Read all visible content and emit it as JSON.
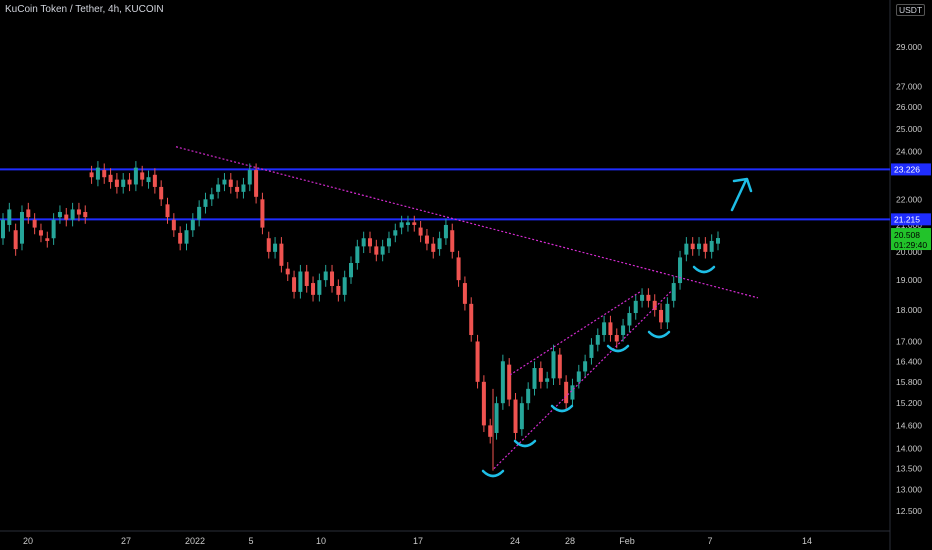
{
  "header": {
    "title": "KuCoin Token / Tether, 4h, KUCOIN",
    "currency": "USDT"
  },
  "colors": {
    "up": "#26a69a",
    "down": "#ef5350",
    "level": "#1f2dff",
    "trendline": "#d42bd0",
    "annotation": "#1ebee6",
    "current": "#22c32a"
  },
  "chart_data": {
    "type": "candlestick",
    "timeframe": "4h",
    "y_axis": {
      "scale": "log",
      "tick_labels": [
        "29.000",
        "27.000",
        "26.000",
        "25.000",
        "24.000",
        "22.000",
        "21.000",
        "20.000",
        "19.000",
        "18.000",
        "17.000",
        "16.400",
        "15.800",
        "15.200",
        "14.600",
        "14.000",
        "13.500",
        "13.000",
        "12.500"
      ]
    },
    "x_axis": {
      "tick_labels": [
        "20",
        "27",
        "2022",
        "5",
        "10",
        "17",
        "24",
        "28",
        "Feb",
        "7",
        "14"
      ]
    },
    "horizontal_levels": [
      {
        "price": 23.226,
        "label": "23.226"
      },
      {
        "price": 21.215,
        "label": "21.215"
      }
    ],
    "current_price": {
      "price": 20.508,
      "label": "20.508",
      "countdown": "01:29:40"
    },
    "trendlines": [
      {
        "style": "dotted",
        "from": {
          "date": "Dec 26",
          "price": 24.2
        },
        "to": {
          "date": "Feb 12",
          "price": 18.4
        }
      },
      {
        "style": "dotted",
        "from": {
          "date": "Jan 22",
          "price": 13.5
        },
        "to": {
          "date": "Feb 3",
          "price": 18.65
        }
      },
      {
        "style": "dotted",
        "from": {
          "date": "Jan 22",
          "price": 16.0
        },
        "to": {
          "date": "Feb 1",
          "price": 18.6
        }
      }
    ],
    "candles_path": [
      [
        20.5,
        21.2
      ],
      [
        21.0,
        21.6
      ],
      [
        20.8,
        20.1
      ],
      [
        20.3,
        21.5
      ],
      [
        21.6,
        21.3
      ],
      [
        21.2,
        20.9
      ],
      [
        20.8,
        20.6
      ],
      [
        20.5,
        20.4
      ],
      [
        20.5,
        21.2
      ],
      [
        21.3,
        21.5
      ],
      [
        21.4,
        21.2
      ],
      [
        21.2,
        21.6
      ],
      [
        21.6,
        21.4
      ],
      [
        21.5,
        21.3
      ],
      [
        23.1,
        22.9
      ],
      [
        22.8,
        23.3
      ],
      [
        23.2,
        22.9
      ],
      [
        23.0,
        22.7
      ],
      [
        22.8,
        22.5
      ],
      [
        22.5,
        22.8
      ],
      [
        22.8,
        22.6
      ],
      [
        22.6,
        23.3
      ],
      [
        23.1,
        22.8
      ],
      [
        22.7,
        22.9
      ],
      [
        23.0,
        22.5
      ],
      [
        22.5,
        22.0
      ],
      [
        21.8,
        21.3
      ],
      [
        21.2,
        20.8
      ],
      [
        20.7,
        20.3
      ],
      [
        20.3,
        20.8
      ],
      [
        20.8,
        21.2
      ],
      [
        21.2,
        21.7
      ],
      [
        21.7,
        22.0
      ],
      [
        22.0,
        22.2
      ],
      [
        22.3,
        22.6
      ],
      [
        22.6,
        22.8
      ],
      [
        22.8,
        22.5
      ],
      [
        22.5,
        22.3
      ],
      [
        22.3,
        22.6
      ],
      [
        22.6,
        23.2
      ],
      [
        23.2,
        22.1
      ],
      [
        22.0,
        20.9
      ],
      [
        20.5,
        20.0
      ],
      [
        20.0,
        20.3
      ],
      [
        20.3,
        19.5
      ],
      [
        19.4,
        19.2
      ],
      [
        19.1,
        18.6
      ],
      [
        18.6,
        19.3
      ],
      [
        19.3,
        18.8
      ],
      [
        18.9,
        18.5
      ],
      [
        18.5,
        19.0
      ],
      [
        19.0,
        19.3
      ],
      [
        19.3,
        18.8
      ],
      [
        18.8,
        18.5
      ],
      [
        18.5,
        19.1
      ],
      [
        19.1,
        19.6
      ],
      [
        19.6,
        20.2
      ],
      [
        20.2,
        20.5
      ],
      [
        20.5,
        20.2
      ],
      [
        20.2,
        19.9
      ],
      [
        19.9,
        20.2
      ],
      [
        20.2,
        20.5
      ],
      [
        20.6,
        20.8
      ],
      [
        20.9,
        21.1
      ],
      [
        21.0,
        21.1
      ],
      [
        21.1,
        21.0
      ],
      [
        20.9,
        20.6
      ],
      [
        20.6,
        20.3
      ],
      [
        20.3,
        20.0
      ],
      [
        20.1,
        20.5
      ],
      [
        20.5,
        21.0
      ],
      [
        20.8,
        20.0
      ],
      [
        19.8,
        19.0
      ],
      [
        18.9,
        18.2
      ],
      [
        18.2,
        17.2
      ],
      [
        17.0,
        15.8
      ],
      [
        15.8,
        14.6
      ],
      [
        14.6,
        14.3
      ],
      [
        14.4,
        15.2
      ],
      [
        15.2,
        16.4
      ],
      [
        16.3,
        15.3
      ],
      [
        15.3,
        14.4
      ],
      [
        14.5,
        15.2
      ],
      [
        15.2,
        15.6
      ],
      [
        15.6,
        16.2
      ],
      [
        16.2,
        15.8
      ],
      [
        15.8,
        15.9
      ],
      [
        15.9,
        16.7
      ],
      [
        16.6,
        15.9
      ],
      [
        15.8,
        15.2
      ],
      [
        15.3,
        15.7
      ],
      [
        15.8,
        16.1
      ],
      [
        16.1,
        16.4
      ],
      [
        16.5,
        16.9
      ],
      [
        16.9,
        17.2
      ],
      [
        17.2,
        17.6
      ],
      [
        17.6,
        17.2
      ],
      [
        17.2,
        17.0
      ],
      [
        17.2,
        17.5
      ],
      [
        17.5,
        17.9
      ],
      [
        17.9,
        18.3
      ],
      [
        18.3,
        18.5
      ],
      [
        18.5,
        18.3
      ],
      [
        18.3,
        18.0
      ],
      [
        18.0,
        17.6
      ],
      [
        17.6,
        18.2
      ],
      [
        18.3,
        18.9
      ],
      [
        18.9,
        19.8
      ],
      [
        19.9,
        20.3
      ],
      [
        20.3,
        20.1
      ],
      [
        20.1,
        20.3
      ],
      [
        20.3,
        20.0
      ],
      [
        20.0,
        20.4
      ],
      [
        20.3,
        20.508
      ]
    ]
  }
}
